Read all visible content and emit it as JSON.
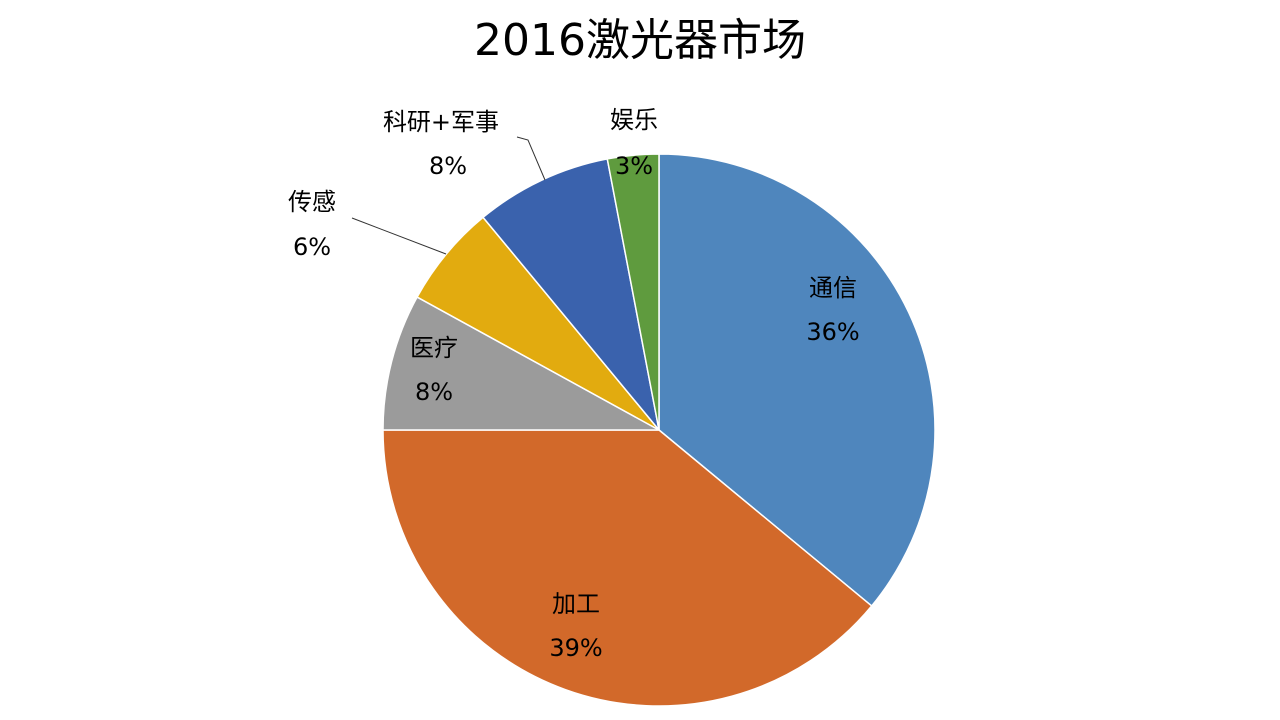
{
  "chart_data": {
    "type": "pie",
    "title": "2016激光器市场",
    "slices": [
      {
        "name": "通信",
        "value": 36,
        "label": "36%",
        "color": "#4f86bd"
      },
      {
        "name": "加工",
        "value": 39,
        "label": "39%",
        "color": "#d2692a"
      },
      {
        "name": "医疗",
        "value": 8,
        "label": "8%",
        "color": "#9b9b9b"
      },
      {
        "name": "传感",
        "value": 6,
        "label": "6%",
        "color": "#e2ab0f"
      },
      {
        "name": "科研+军事",
        "value": 8,
        "label": "8%",
        "color": "#3a62ad"
      },
      {
        "name": "娱乐",
        "value": 3,
        "label": "3%",
        "color": "#5f9b3e"
      }
    ]
  }
}
